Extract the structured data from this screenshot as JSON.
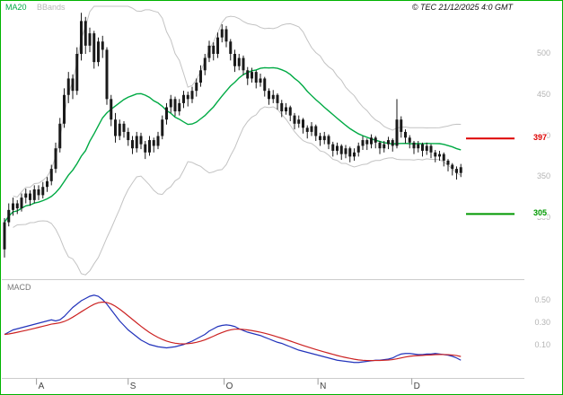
{
  "header": {
    "legend": {
      "ma20": "MA20",
      "bbands": "BBands"
    },
    "copyright": "© TEC 21/12/2025 4:0 GMT"
  },
  "macd_panel": {
    "label": "MACD"
  },
  "chart_data": {
    "type": "candlestick",
    "timeframe": "daily",
    "overlays": [
      "MA20",
      "BBands(20,2)"
    ],
    "lower_indicator": "MACD(12,26,9) with signal line",
    "price_ylim": [
      226,
      564
    ],
    "price_ticks": [
      500,
      450,
      400,
      350,
      300
    ],
    "macd_ylim": [
      -0.19,
      0.68
    ],
    "macd_ticks": [
      "0.50",
      "0.30",
      "0.10"
    ],
    "month_labels": [
      "A",
      "S",
      "O",
      "N",
      "D"
    ],
    "month_tick_indices": [
      7.5,
      29,
      51.5,
      73.5,
      95.5
    ],
    "level_lines": [
      {
        "value": 397,
        "color": "#dd0000",
        "role": "resistance"
      },
      {
        "value": 305,
        "color": "#009900",
        "role": "support"
      }
    ],
    "colors": {
      "candle": "#1a1a1a",
      "ma20": "#00aa44",
      "bbands": "#c3c3c3",
      "macd": "#2233bb",
      "signal": "#cc2222",
      "axis": "#cccccc",
      "tick_mark": "#999999"
    },
    "candles_ohlc": [
      [
        262,
        300,
        252,
        295
      ],
      [
        295,
        318,
        290,
        310
      ],
      [
        310,
        325,
        303,
        318
      ],
      [
        318,
        322,
        305,
        312
      ],
      [
        312,
        330,
        308,
        325
      ],
      [
        325,
        336,
        318,
        330
      ],
      [
        330,
        334,
        315,
        322
      ],
      [
        322,
        340,
        318,
        335
      ],
      [
        335,
        340,
        322,
        328
      ],
      [
        328,
        344,
        324,
        338
      ],
      [
        338,
        350,
        332,
        345
      ],
      [
        345,
        365,
        340,
        360
      ],
      [
        360,
        392,
        355,
        385
      ],
      [
        385,
        422,
        380,
        415
      ],
      [
        415,
        458,
        410,
        450
      ],
      [
        450,
        478,
        440,
        470
      ],
      [
        470,
        475,
        445,
        455
      ],
      [
        455,
        508,
        450,
        500
      ],
      [
        500,
        550,
        492,
        540
      ],
      [
        540,
        545,
        500,
        510
      ],
      [
        510,
        532,
        502,
        525
      ],
      [
        525,
        528,
        482,
        490
      ],
      [
        490,
        520,
        485,
        515
      ],
      [
        515,
        522,
        495,
        505
      ],
      [
        505,
        508,
        438,
        445
      ],
      [
        445,
        450,
        412,
        420
      ],
      [
        420,
        428,
        392,
        400
      ],
      [
        400,
        420,
        395,
        415
      ],
      [
        415,
        418,
        398,
        405
      ],
      [
        405,
        410,
        388,
        395
      ],
      [
        395,
        400,
        378,
        385
      ],
      [
        385,
        405,
        380,
        400
      ],
      [
        400,
        404,
        384,
        390
      ],
      [
        390,
        394,
        372,
        380
      ],
      [
        380,
        400,
        376,
        395
      ],
      [
        395,
        398,
        380,
        388
      ],
      [
        388,
        405,
        384,
        400
      ],
      [
        400,
        425,
        396,
        420
      ],
      [
        420,
        440,
        414,
        435
      ],
      [
        435,
        450,
        428,
        445
      ],
      [
        445,
        448,
        424,
        430
      ],
      [
        430,
        445,
        425,
        440
      ],
      [
        440,
        455,
        434,
        450
      ],
      [
        450,
        454,
        436,
        445
      ],
      [
        445,
        460,
        440,
        455
      ],
      [
        455,
        470,
        448,
        465
      ],
      [
        465,
        486,
        460,
        480
      ],
      [
        480,
        500,
        474,
        495
      ],
      [
        495,
        516,
        490,
        510
      ],
      [
        510,
        514,
        492,
        500
      ],
      [
        500,
        526,
        495,
        520
      ],
      [
        520,
        536,
        514,
        530
      ],
      [
        530,
        534,
        508,
        515
      ],
      [
        515,
        518,
        492,
        500
      ],
      [
        500,
        505,
        478,
        485
      ],
      [
        485,
        500,
        480,
        495
      ],
      [
        495,
        498,
        474,
        480
      ],
      [
        480,
        484,
        462,
        470
      ],
      [
        470,
        483,
        465,
        478
      ],
      [
        478,
        480,
        458,
        465
      ],
      [
        465,
        476,
        460,
        470
      ],
      [
        470,
        472,
        448,
        455
      ],
      [
        455,
        458,
        438,
        445
      ],
      [
        445,
        456,
        440,
        450
      ],
      [
        450,
        452,
        432,
        440
      ],
      [
        440,
        444,
        423,
        430
      ],
      [
        430,
        440,
        426,
        435
      ],
      [
        435,
        437,
        418,
        425
      ],
      [
        425,
        428,
        408,
        415
      ],
      [
        415,
        425,
        410,
        420
      ],
      [
        420,
        422,
        403,
        410
      ],
      [
        410,
        413,
        397,
        405
      ],
      [
        405,
        417,
        400,
        412
      ],
      [
        412,
        414,
        394,
        400
      ],
      [
        400,
        404,
        388,
        395
      ],
      [
        395,
        405,
        390,
        400
      ],
      [
        400,
        402,
        384,
        390
      ],
      [
        390,
        393,
        375,
        382
      ],
      [
        382,
        392,
        377,
        388
      ],
      [
        388,
        390,
        371,
        378
      ],
      [
        378,
        389,
        373,
        385
      ],
      [
        385,
        387,
        368,
        375
      ],
      [
        375,
        385,
        370,
        380
      ],
      [
        380,
        392,
        375,
        388
      ],
      [
        388,
        400,
        383,
        395
      ],
      [
        395,
        397,
        383,
        390
      ],
      [
        390,
        402,
        385,
        398
      ],
      [
        398,
        400,
        385,
        392
      ],
      [
        392,
        394,
        378,
        385
      ],
      [
        385,
        394,
        380,
        390
      ],
      [
        390,
        399,
        384,
        395
      ],
      [
        395,
        397,
        381,
        388
      ],
      [
        388,
        445,
        385,
        420
      ],
      [
        420,
        424,
        398,
        405
      ],
      [
        405,
        408,
        391,
        398
      ],
      [
        398,
        401,
        385,
        392
      ],
      [
        392,
        394,
        378,
        385
      ],
      [
        385,
        394,
        380,
        390
      ],
      [
        390,
        392,
        375,
        382
      ],
      [
        382,
        392,
        377,
        388
      ],
      [
        388,
        390,
        373,
        380
      ],
      [
        380,
        383,
        368,
        375
      ],
      [
        375,
        382,
        370,
        378
      ],
      [
        378,
        380,
        363,
        370
      ],
      [
        370,
        372,
        357,
        365
      ],
      [
        365,
        367,
        352,
        360
      ],
      [
        360,
        363,
        347,
        355
      ],
      [
        355,
        366,
        350,
        362
      ]
    ],
    "macd": [
      0.2,
      0.22,
      0.24,
      0.25,
      0.26,
      0.27,
      0.28,
      0.29,
      0.3,
      0.31,
      0.32,
      0.33,
      0.32,
      0.33,
      0.36,
      0.4,
      0.44,
      0.47,
      0.5,
      0.52,
      0.54,
      0.55,
      0.54,
      0.51,
      0.47,
      0.42,
      0.37,
      0.32,
      0.28,
      0.24,
      0.21,
      0.18,
      0.15,
      0.13,
      0.11,
      0.1,
      0.09,
      0.085,
      0.08,
      0.085,
      0.09,
      0.1,
      0.11,
      0.125,
      0.14,
      0.16,
      0.18,
      0.2,
      0.23,
      0.25,
      0.27,
      0.28,
      0.285,
      0.28,
      0.27,
      0.25,
      0.235,
      0.22,
      0.21,
      0.2,
      0.19,
      0.175,
      0.16,
      0.145,
      0.13,
      0.12,
      0.105,
      0.09,
      0.075,
      0.06,
      0.05,
      0.04,
      0.03,
      0.02,
      0.01,
      0.0,
      -0.01,
      -0.02,
      -0.03,
      -0.035,
      -0.04,
      -0.045,
      -0.05,
      -0.05,
      -0.045,
      -0.04,
      -0.035,
      -0.03,
      -0.03,
      -0.025,
      -0.02,
      -0.01,
      0.01,
      0.025,
      0.03,
      0.03,
      0.025,
      0.02,
      0.02,
      0.025,
      0.025,
      0.03,
      0.025,
      0.02,
      0.015,
      0.005,
      -0.01,
      -0.03
    ]
  }
}
